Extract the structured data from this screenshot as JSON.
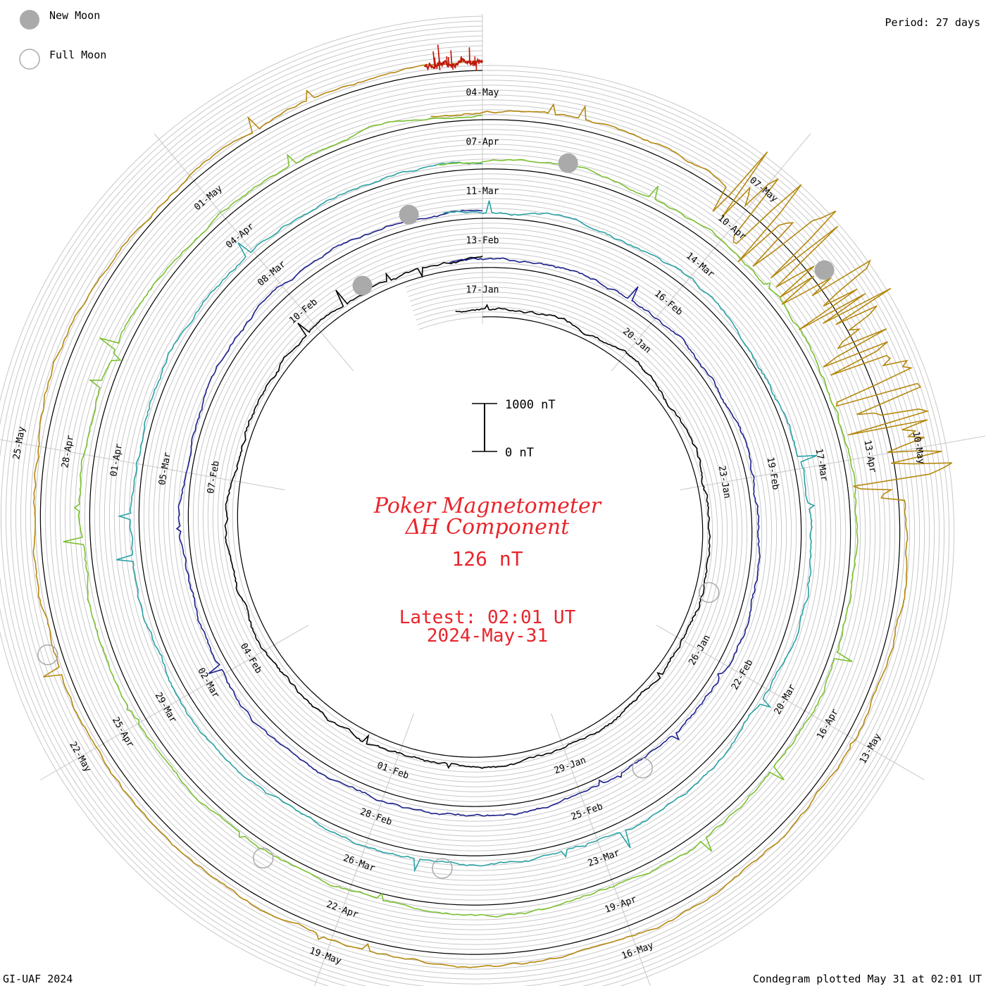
{
  "header": {
    "legend_new_moon": "New Moon",
    "legend_full_moon": "Full Moon",
    "period": "Period: 27 days"
  },
  "footer": {
    "credit": "GI-UAF 2024",
    "plotted": "Condegram plotted May 31 at 02:01 UT"
  },
  "center": {
    "title_line1": "Poker Magnetometer",
    "title_line2": "ΔH Component",
    "range_value": "126 nT",
    "latest": "Latest: 02:01 UT",
    "latest_date": "2024-May-31",
    "scale_top": "1000 nT",
    "scale_bottom": "0 nT"
  },
  "colors": {
    "accent": "#e8252b",
    "grid": "#bbbbbb",
    "new_moon": "#aaaaaa",
    "full_moon": "#aaaaaa"
  },
  "chart_data": {
    "type": "line",
    "subtype": "spiral condegram",
    "title": "Poker Magnetometer ΔH Component",
    "units": "nT",
    "period_days": 27,
    "rotations": [
      {
        "color": "#000000",
        "dates": [
          "17-Jan",
          "20-Jan",
          "23-Jan",
          "26-Jan",
          "29-Jan",
          "01-Feb",
          "04-Feb",
          "07-Feb",
          "10-Feb"
        ]
      },
      {
        "color": "#1c1f8c",
        "dates": [
          "13-Feb",
          "16-Feb",
          "19-Feb",
          "22-Feb",
          "25-Feb",
          "28-Feb",
          "02-Mar",
          "05-Mar",
          "08-Mar"
        ]
      },
      {
        "color": "#2aa2a6",
        "dates": [
          "11-Mar",
          "14-Mar",
          "17-Mar",
          "20-Mar",
          "23-Mar",
          "26-Mar",
          "29-Mar",
          "01-Apr",
          "04-Apr"
        ]
      },
      {
        "color": "#7bc130",
        "dates": [
          "07-Apr",
          "10-Apr",
          "13-Apr",
          "16-Apr",
          "19-Apr",
          "22-Apr",
          "25-Apr",
          "28-Apr",
          "01-May"
        ]
      },
      {
        "color": "#b5880e",
        "dates": [
          "04-May",
          "07-May",
          "10-May",
          "13-May",
          "16-May",
          "19-May",
          "22-May",
          "25-May"
        ]
      },
      {
        "color": "#c0180c",
        "dates": []
      }
    ],
    "new_moons": [
      "11-Feb",
      "10-Mar",
      "08-Apr",
      "08-May"
    ],
    "full_moons": [
      "25-Jan",
      "24-Feb",
      "25-Mar",
      "23-Apr",
      "23-May"
    ],
    "latest_value_nT": 126,
    "latest_time": "2024-05-31 02:01 UT"
  }
}
